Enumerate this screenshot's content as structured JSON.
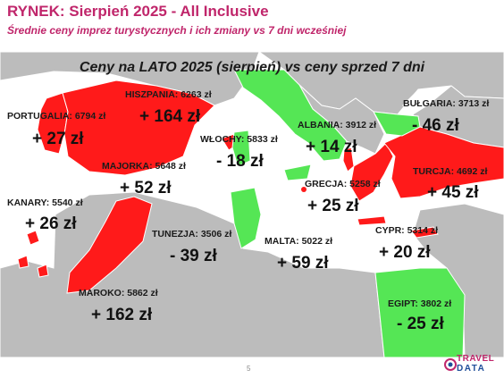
{
  "header": {
    "title": "RYNEK: Sierpień 2025 - All Inclusive",
    "subtitle": "Średnie ceny imprez turystycznych i ich zmiany vs 7 dni wcześniej"
  },
  "map_title": "Ceny na LATO 2025 (sierpień) vs ceny sprzed 7 dni",
  "colors": {
    "increase": "#ff1a1a",
    "decrease": "#55e655",
    "other_land": "#bcbcbc",
    "sea": "#ffffff",
    "brand_pink": "#c0266b",
    "brand_blue": "#1f4e9a"
  },
  "destinations": [
    {
      "id": "hiszpania",
      "label": "HISZPANIA: 6263 zł",
      "change": "+ 164 zł",
      "direction": "up"
    },
    {
      "id": "portugalia",
      "label": "PORTUGALIA: 6794 zł",
      "change": "+ 27 zł",
      "direction": "up"
    },
    {
      "id": "majorka",
      "label": "MAJORKA: 5648 zł",
      "change": "+ 52 zł",
      "direction": "up"
    },
    {
      "id": "kanary",
      "label": "KANARY: 5540 zł",
      "change": "+ 26 zł",
      "direction": "up"
    },
    {
      "id": "maroko",
      "label": "MAROKO: 5862 zł",
      "change": "+ 162 zł",
      "direction": "up"
    },
    {
      "id": "wlochy",
      "label": "WŁOCHY: 5833 zł",
      "change": "- 18 zł",
      "direction": "down"
    },
    {
      "id": "tunezja",
      "label": "TUNEZJA: 3506 zł",
      "change": "- 39 zł",
      "direction": "down"
    },
    {
      "id": "malta",
      "label": "MALTA: 5022 zł",
      "change": "+ 59 zł",
      "direction": "up"
    },
    {
      "id": "albania",
      "label": "ALBANIA: 3912 zł",
      "change": "+ 14 zł",
      "direction": "up"
    },
    {
      "id": "grecja",
      "label": "GRECJA: 5258 zł",
      "change": "+ 25 zł",
      "direction": "up"
    },
    {
      "id": "bulgaria",
      "label": "BUŁGARIA: 3713 zł",
      "change": "- 46 zł",
      "direction": "down"
    },
    {
      "id": "turcja",
      "label": "TURCJA: 4692 zł",
      "change": "+ 45 zł",
      "direction": "up"
    },
    {
      "id": "cypr",
      "label": "CYPR: 5314 zł",
      "change": "+ 20 zł",
      "direction": "up"
    },
    {
      "id": "egipt",
      "label": "EGIPT: 3802 zł",
      "change": "- 25 zł",
      "direction": "down"
    }
  ],
  "footer": {
    "page_number": "5",
    "logo_top": "TRAVEL",
    "logo_bottom": "DATA"
  }
}
